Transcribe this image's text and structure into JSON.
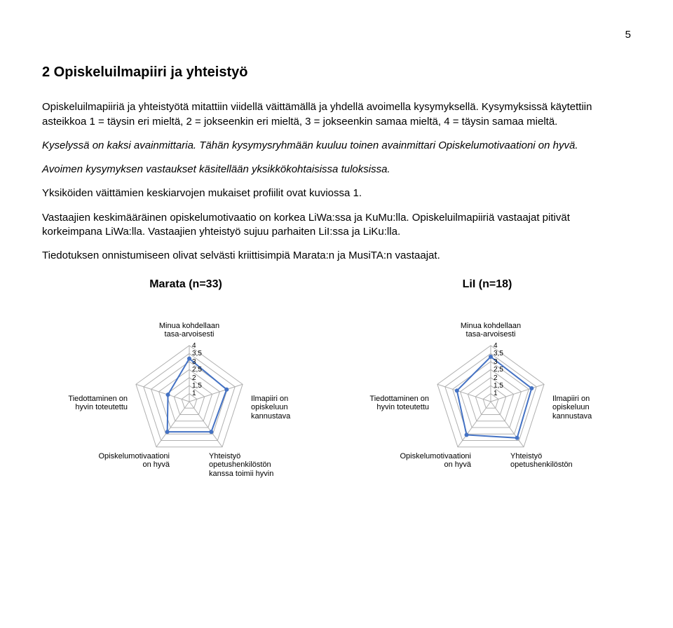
{
  "page_number": "5",
  "heading": "2 Opiskeluilmapiiri ja yhteistyö",
  "paragraphs": {
    "intro": "Opiskeluilmapiiriä ja yhteistyötä mitattiin viidellä väittämällä ja yhdellä avoimella kysymyksellä. Kysymyksissä käytettiin asteikkoa 1 = täysin eri mieltä, 2 = jokseenkin eri mieltä, 3 = jokseenkin samaa mieltä, 4 = täysin samaa mieltä.",
    "kyselyssa": "Kyselyssä on kaksi avainmittaria. Tähän kysymysryhmään kuuluu toinen avainmittari Opiskelumotivaationi on hyvä.",
    "avoimen": "Avoimen kysymyksen vastaukset käsitellään yksikkökohtaisissa tuloksissa.",
    "yksikot": "Yksiköiden väittämien keskiarvojen mukaiset profiilit ovat kuviossa 1.",
    "vastaajien": "Vastaajien keskimääräinen opiskelumotivaatio on korkea LiWa:ssa ja KuMu:lla. Opiskeluilmapiiriä vastaajat pitivät korkeimpana LiWa:lla. Vastaajien yhteistyö sujuu parhaiten LiI:ssa ja LiKu:lla.",
    "tiedotuksen": "Tiedotuksen onnistumiseen olivat selvästi kriittisimpiä Marata:n ja MusiTA:n vastaajat."
  },
  "axis_labels": [
    "Minua kohdellaan\ntasa-arvoisesti",
    "Ilmapiiri on\nopiskeluun\nkannustava",
    "Yhteistyö\nopetushenkilöstön\nkanssa toimii hyvin",
    "Opiskelumotivaationi\non hyvä",
    "Tiedottaminen on\nhyvin toteutettu"
  ],
  "axis_labels_right_clipped": [
    "Minua kohdellaan\ntasa-arvoisesti",
    "Ilmapiiri on\nopiskeluun\nkannustava",
    "Yhteistyö\nopetushenkilöstön\n",
    "Opiskelumotivaationi\non hyvä",
    "Tiedottaminen on\nhyvin toteutettu"
  ],
  "scale_ticks": [
    "4",
    "3,5",
    "3",
    "2,5",
    "2",
    "1,5",
    "1"
  ],
  "charts": [
    {
      "title": "Marata (n=33)",
      "values": [
        3.3,
        3.1,
        3.0,
        3.0,
        2.2
      ],
      "line_color": "#4472c4",
      "marker_color": "#4472c4",
      "grid_color": "#b0b0b0",
      "background": "#ffffff"
    },
    {
      "title": "LiI (n=18)",
      "values": [
        3.4,
        3.3,
        3.4,
        3.2,
        2.9
      ],
      "line_color": "#4472c4",
      "marker_color": "#4472c4",
      "grid_color": "#b0b0b0",
      "background": "#ffffff",
      "clipped_right": true
    }
  ],
  "radar_style": {
    "min": 1,
    "max": 4,
    "n_axes": 5,
    "grid_levels": 7,
    "line_width": 2,
    "marker_radius": 3,
    "tick_fontsize": 10,
    "label_fontsize": 11,
    "title_fontsize": 16
  }
}
